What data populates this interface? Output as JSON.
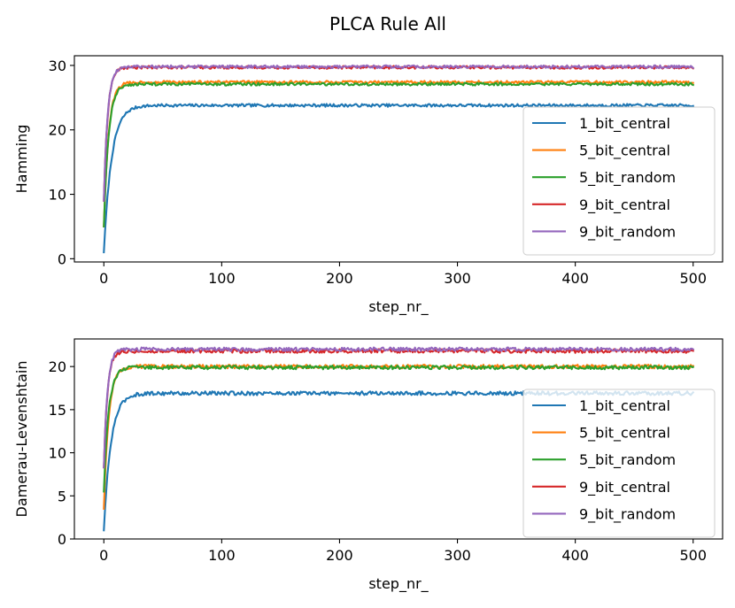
{
  "figure": {
    "title": "PLCA Rule All"
  },
  "chart_data": [
    {
      "type": "line",
      "xlabel": "step_nr_",
      "ylabel": "Hamming",
      "xlim": [
        -25,
        525
      ],
      "ylim": [
        -0.5,
        31.5
      ],
      "xticks": [
        0,
        100,
        200,
        300,
        400,
        500
      ],
      "yticks": [
        0,
        10,
        20,
        30
      ],
      "grid": false,
      "legend_position": "right",
      "series": [
        {
          "name": "1_bit_central",
          "color": "#1f77b4",
          "start": 1,
          "plateau": 23.8,
          "tau": 6.5
        },
        {
          "name": "5_bit_central",
          "color": "#ff7f0e",
          "start": 5,
          "plateau": 27.4,
          "tau": 4.0
        },
        {
          "name": "5_bit_random",
          "color": "#2ca02c",
          "start": 5,
          "plateau": 27.1,
          "tau": 4.0
        },
        {
          "name": "9_bit_central",
          "color": "#d62728",
          "start": 9,
          "plateau": 29.7,
          "tau": 3.2
        },
        {
          "name": "9_bit_random",
          "color": "#9467bd",
          "start": 9,
          "plateau": 29.8,
          "tau": 3.2
        }
      ]
    },
    {
      "type": "line",
      "xlabel": "step_nr_",
      "ylabel": "Damerau-Levenshtain",
      "xlim": [
        -25,
        525
      ],
      "ylim": [
        0,
        23.2
      ],
      "xticks": [
        0,
        100,
        200,
        300,
        400,
        500
      ],
      "yticks": [
        0,
        5,
        10,
        15,
        20
      ],
      "grid": false,
      "legend_position": "right",
      "series": [
        {
          "name": "1_bit_central",
          "color": "#1f77b4",
          "start": 1,
          "plateau": 16.9,
          "tau": 6.0
        },
        {
          "name": "5_bit_central",
          "color": "#ff7f0e",
          "start": 3.5,
          "plateau": 20.0,
          "tau": 4.0
        },
        {
          "name": "5_bit_random",
          "color": "#2ca02c",
          "start": 5.5,
          "plateau": 19.9,
          "tau": 4.0
        },
        {
          "name": "9_bit_central",
          "color": "#d62728",
          "start": 8.3,
          "plateau": 21.8,
          "tau": 3.0
        },
        {
          "name": "9_bit_random",
          "color": "#9467bd",
          "start": 8.3,
          "plateau": 22.0,
          "tau": 3.0
        }
      ]
    }
  ]
}
